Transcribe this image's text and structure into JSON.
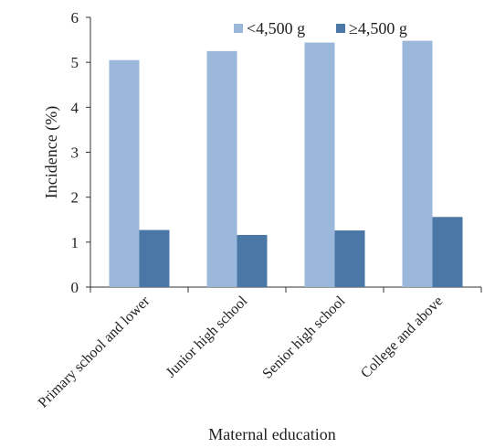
{
  "chart_data": {
    "type": "bar",
    "title": "",
    "xlabel": "Maternal education",
    "ylabel": "Incidence (%)",
    "ylim": [
      0,
      6
    ],
    "yticks": [
      "0",
      "1",
      "2",
      "3",
      "4",
      "5",
      "6"
    ],
    "categories": [
      "Primary school and lower",
      "Junior high school",
      "Senior high school",
      "College and above"
    ],
    "series": [
      {
        "name": "<4,500 g",
        "color": "#9bb8da",
        "values": [
          5.05,
          5.25,
          5.44,
          5.48
        ]
      },
      {
        "name": "≥4,500 g",
        "color": "#4a77a6",
        "values": [
          1.27,
          1.16,
          1.26,
          1.56
        ]
      }
    ],
    "legend_position": "top-right",
    "grid": false
  }
}
